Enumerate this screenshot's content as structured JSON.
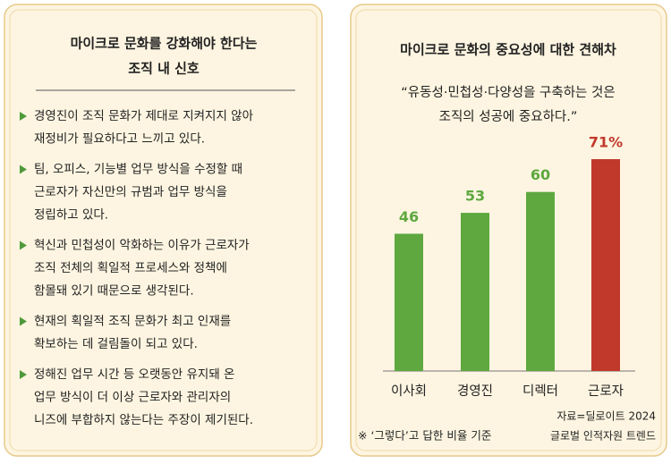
{
  "left_panel": {
    "title_lines": [
      "마이크로 문화를 강화해야 한다는",
      "조직 내 신호"
    ],
    "items": [
      [
        "경영진이 조직 문화가 제대로 지켜지지 않아",
        "재정비가 필요하다고 느끼고 있다."
      ],
      [
        "팀, 오피스, 기능별 업무 방식을 수정할 때",
        "근로자가 자신만의 규범과 업무 방식을",
        "정립하고 있다."
      ],
      [
        "혁신과 민첩성이 악화하는 이유가 근로자가",
        "조직 전체의 획일적 프로세스와 정책에",
        "함몰돼 있기 때문으로 생각된다."
      ],
      [
        "현재의 획일적 조직 문화가 최고 인재를",
        "확보하는 데 걸림돌이 되고 있다."
      ],
      [
        "정해진 업무 시간 등 오랫동안 유지돼 온",
        "업무 방식이 더 이상 근로자와 관리자의",
        "니즈에 부합하지 않는다는 주장이 제기된다."
      ]
    ]
  },
  "chart_data": {
    "type": "bar",
    "title": "마이크로 문화의 중요성에 대한 견해차",
    "subtitle_lines": [
      "“유동성·민첩성·다양성을 구축하는 것은",
      "조직의 성공에 중요하다.”"
    ],
    "categories": [
      "이사회",
      "경영진",
      "디렉터",
      "근로자"
    ],
    "values": [
      46,
      53,
      60,
      71
    ],
    "value_labels": [
      "46",
      "53",
      "60",
      "71%"
    ],
    "colors": [
      "#5ea83f",
      "#5ea83f",
      "#5ea83f",
      "#c0392b"
    ],
    "footnote": "※ ‘그렇다’고 답한 비율 기준",
    "source_lines": [
      "자료=딜로이트 2024",
      "글로벌 인적자원 트렌드"
    ]
  }
}
